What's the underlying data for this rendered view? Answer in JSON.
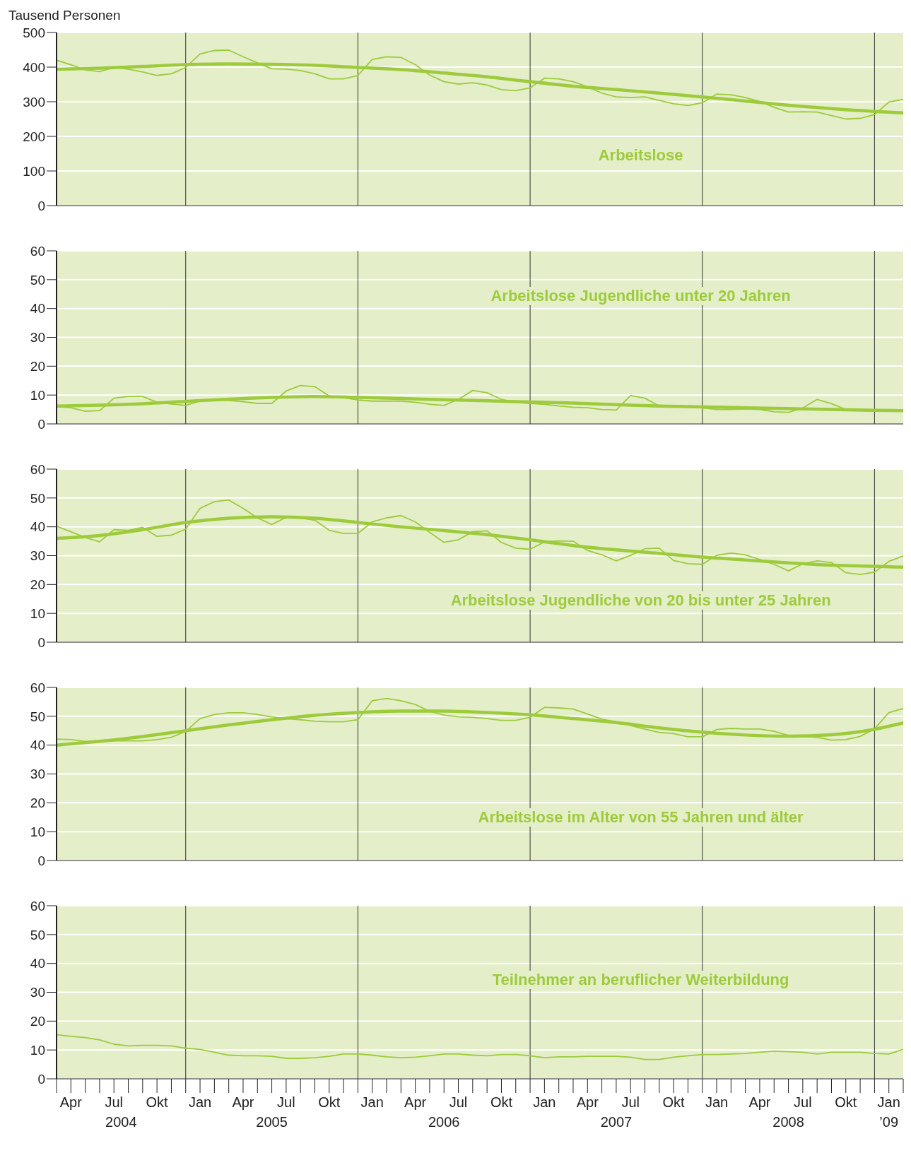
{
  "chart_data": [
    {
      "type": "line",
      "title": "Arbeitslose",
      "ylabel": "Tausend Personen",
      "x": [
        "2004-03",
        "2004-04",
        "2004-05",
        "2004-06",
        "2004-07",
        "2004-08",
        "2004-09",
        "2004-10",
        "2004-11",
        "2004-12",
        "2005-01",
        "2005-02",
        "2005-03",
        "2005-04",
        "2005-05",
        "2005-06",
        "2005-07",
        "2005-08",
        "2005-09",
        "2005-10",
        "2005-11",
        "2005-12",
        "2006-01",
        "2006-02",
        "2006-03",
        "2006-04",
        "2006-05",
        "2006-06",
        "2006-07",
        "2006-08",
        "2006-09",
        "2006-10",
        "2006-11",
        "2006-12",
        "2007-01",
        "2007-02",
        "2007-03",
        "2007-04",
        "2007-05",
        "2007-06",
        "2007-07",
        "2007-08",
        "2007-09",
        "2007-10",
        "2007-11",
        "2007-12",
        "2008-01",
        "2008-02",
        "2008-03",
        "2008-04",
        "2008-05",
        "2008-06",
        "2008-07",
        "2008-08",
        "2008-09",
        "2008-10",
        "2008-11",
        "2008-12",
        "2009-01",
        "2009-02"
      ],
      "series": [
        {
          "color": "#9dcb3c",
          "values": [
            420,
            407,
            392,
            387,
            399,
            394,
            386,
            376,
            381,
            399,
            438,
            448,
            449,
            430,
            412,
            395,
            394,
            390,
            381,
            366,
            366,
            376,
            422,
            430,
            428,
            407,
            377,
            358,
            351,
            355,
            348,
            335,
            332,
            340,
            368,
            366,
            358,
            343,
            325,
            314,
            312,
            314,
            304,
            294,
            289,
            297,
            322,
            320,
            312,
            301,
            284,
            270,
            271,
            270,
            260,
            250,
            252,
            263,
            299,
            307
          ]
        },
        {
          "color": "#9dcb3c",
          "x": [
            "2004-03",
            "2004-06",
            "2004-09",
            "2004-12",
            "2005-03",
            "2005-06",
            "2005-09",
            "2005-12",
            "2006-03",
            "2006-06",
            "2006-09",
            "2006-12",
            "2007-03",
            "2007-06",
            "2007-09",
            "2007-12",
            "2008-03",
            "2008-06",
            "2008-09",
            "2008-12",
            "2009-02"
          ],
          "values": [
            394,
            397,
            402,
            407,
            409,
            408,
            405,
            399,
            393,
            383,
            372,
            358,
            345,
            335,
            325,
            314,
            302,
            290,
            280,
            272,
            268
          ]
        }
      ],
      "xlim": [
        "2004-03",
        "2009-02"
      ],
      "ylim": [
        0,
        500
      ],
      "yticks": [
        0,
        100,
        200,
        300,
        400,
        500
      ],
      "grid": "y",
      "marker": "none",
      "tick_labels": "y",
      "ref_lines": [
        {
          "axis": "x",
          "value": "2004-12"
        },
        {
          "axis": "x",
          "value": "2005-12"
        },
        {
          "axis": "x",
          "value": "2006-12"
        },
        {
          "axis": "x",
          "value": "2007-12"
        },
        {
          "axis": "x",
          "value": "2008-12"
        }
      ]
    },
    {
      "type": "line",
      "title": "Arbeitslose Jugendliche unter 20 Jahren",
      "x": [
        "2004-03",
        "2004-04",
        "2004-05",
        "2004-06",
        "2004-07",
        "2004-08",
        "2004-09",
        "2004-10",
        "2004-11",
        "2004-12",
        "2005-01",
        "2005-02",
        "2005-03",
        "2005-04",
        "2005-05",
        "2005-06",
        "2005-07",
        "2005-08",
        "2005-09",
        "2005-10",
        "2005-11",
        "2005-12",
        "2006-01",
        "2006-02",
        "2006-03",
        "2006-04",
        "2006-05",
        "2006-06",
        "2006-07",
        "2006-08",
        "2006-09",
        "2006-10",
        "2006-11",
        "2006-12",
        "2007-01",
        "2007-02",
        "2007-03",
        "2007-04",
        "2007-05",
        "2007-06",
        "2007-07",
        "2007-08",
        "2007-09",
        "2007-10",
        "2007-11",
        "2007-12",
        "2008-01",
        "2008-02",
        "2008-03",
        "2008-04",
        "2008-05",
        "2008-06",
        "2008-07",
        "2008-08",
        "2008-09",
        "2008-10",
        "2008-11",
        "2008-12",
        "2009-01",
        "2009-02"
      ],
      "series": [
        {
          "color": "#9dcb3c",
          "values": [
            6.0,
            5.6,
            4.4,
            4.6,
            8.9,
            9.5,
            9.5,
            7.5,
            6.9,
            6.4,
            7.9,
            8.3,
            8.1,
            7.7,
            7.1,
            7.1,
            11.4,
            13.3,
            12.9,
            9.7,
            9.1,
            8.3,
            7.9,
            7.9,
            7.9,
            7.5,
            6.8,
            6.4,
            8.5,
            11.6,
            10.8,
            8.5,
            7.5,
            7.1,
            6.8,
            6.2,
            5.8,
            5.6,
            5.0,
            4.8,
            9.8,
            8.9,
            6.2,
            6.0,
            5.8,
            5.6,
            5.0,
            5.0,
            5.2,
            5.0,
            4.2,
            4.0,
            5.5,
            8.5,
            7.0,
            5.0,
            4.6,
            4.4,
            4.4,
            4.6
          ]
        },
        {
          "color": "#9dcb3c",
          "x": [
            "2004-03",
            "2004-06",
            "2004-09",
            "2004-12",
            "2005-03",
            "2005-06",
            "2005-09",
            "2005-12",
            "2006-03",
            "2006-06",
            "2006-09",
            "2006-12",
            "2007-03",
            "2007-06",
            "2007-09",
            "2007-12",
            "2008-03",
            "2008-06",
            "2008-09",
            "2008-12",
            "2009-02"
          ],
          "values": [
            6.2,
            6.5,
            7.0,
            7.8,
            8.6,
            9.2,
            9.5,
            9.2,
            8.8,
            8.4,
            8.0,
            7.6,
            7.2,
            6.7,
            6.2,
            5.9,
            5.6,
            5.3,
            5.0,
            4.7,
            4.6
          ]
        }
      ],
      "xlim": [
        "2004-03",
        "2009-02"
      ],
      "ylim": [
        0,
        60
      ],
      "yticks": [
        0,
        10,
        20,
        30,
        40,
        50,
        60
      ],
      "grid": "y",
      "marker": "none",
      "tick_labels": "y",
      "ref_lines": [
        {
          "axis": "x",
          "value": "2004-12"
        },
        {
          "axis": "x",
          "value": "2005-12"
        },
        {
          "axis": "x",
          "value": "2006-12"
        },
        {
          "axis": "x",
          "value": "2007-12"
        },
        {
          "axis": "x",
          "value": "2008-12"
        }
      ]
    },
    {
      "type": "line",
      "title": "Arbeitslose Jugendliche von 20 bis unter 25 Jahren",
      "x": [
        "2004-03",
        "2004-04",
        "2004-05",
        "2004-06",
        "2004-07",
        "2004-08",
        "2004-09",
        "2004-10",
        "2004-11",
        "2004-12",
        "2005-01",
        "2005-02",
        "2005-03",
        "2005-04",
        "2005-05",
        "2005-06",
        "2005-07",
        "2005-08",
        "2005-09",
        "2005-10",
        "2005-11",
        "2005-12",
        "2006-01",
        "2006-02",
        "2006-03",
        "2006-04",
        "2006-05",
        "2006-06",
        "2006-07",
        "2006-08",
        "2006-09",
        "2006-10",
        "2006-11",
        "2006-12",
        "2007-01",
        "2007-02",
        "2007-03",
        "2007-04",
        "2007-05",
        "2007-06",
        "2007-07",
        "2007-08",
        "2007-09",
        "2007-10",
        "2007-11",
        "2007-12",
        "2008-01",
        "2008-02",
        "2008-03",
        "2008-04",
        "2008-05",
        "2008-06",
        "2008-07",
        "2008-08",
        "2008-09",
        "2008-10",
        "2008-11",
        "2008-12",
        "2009-01",
        "2009-02"
      ],
      "series": [
        {
          "color": "#9dcb3c",
          "values": [
            40.2,
            38.3,
            36.3,
            34.8,
            39.0,
            38.8,
            39.8,
            36.7,
            37.1,
            39.2,
            46.4,
            48.7,
            49.3,
            46.4,
            43.1,
            40.8,
            43.3,
            43.1,
            42.3,
            38.8,
            37.7,
            37.7,
            41.7,
            43.1,
            43.9,
            41.7,
            38.1,
            34.6,
            35.5,
            38.3,
            38.6,
            34.6,
            32.6,
            32.2,
            34.8,
            35.1,
            35.0,
            31.8,
            30.3,
            28.2,
            30.1,
            32.4,
            32.6,
            28.3,
            27.2,
            27.0,
            30.1,
            30.9,
            30.3,
            28.7,
            27.0,
            24.7,
            27.2,
            28.2,
            27.6,
            24.1,
            23.5,
            24.3,
            28.0,
            29.9
          ]
        },
        {
          "color": "#9dcb3c",
          "x": [
            "2004-03",
            "2004-06",
            "2004-09",
            "2004-12",
            "2005-03",
            "2005-06",
            "2005-09",
            "2005-12",
            "2006-03",
            "2006-06",
            "2006-09",
            "2006-12",
            "2007-03",
            "2007-06",
            "2007-09",
            "2007-12",
            "2008-03",
            "2008-06",
            "2008-09",
            "2008-12",
            "2009-02"
          ],
          "values": [
            36.0,
            37.0,
            39.0,
            41.5,
            43.0,
            43.5,
            43.0,
            41.5,
            40.0,
            38.7,
            37.3,
            35.5,
            33.5,
            32.0,
            30.8,
            29.5,
            28.5,
            27.5,
            26.7,
            26.3,
            26.0
          ]
        }
      ],
      "xlim": [
        "2004-03",
        "2009-02"
      ],
      "ylim": [
        0,
        60
      ],
      "yticks": [
        0,
        10,
        20,
        30,
        40,
        50,
        60
      ],
      "grid": "y",
      "marker": "none",
      "tick_labels": "y",
      "ref_lines": [
        {
          "axis": "x",
          "value": "2004-12"
        },
        {
          "axis": "x",
          "value": "2005-12"
        },
        {
          "axis": "x",
          "value": "2006-12"
        },
        {
          "axis": "x",
          "value": "2007-12"
        },
        {
          "axis": "x",
          "value": "2008-12"
        }
      ]
    },
    {
      "type": "line",
      "title": "Arbeitslose im Alter von 55 Jahren und älter",
      "x": [
        "2004-03",
        "2004-04",
        "2004-05",
        "2004-06",
        "2004-07",
        "2004-08",
        "2004-09",
        "2004-10",
        "2004-11",
        "2004-12",
        "2005-01",
        "2005-02",
        "2005-03",
        "2005-04",
        "2005-05",
        "2005-06",
        "2005-07",
        "2005-08",
        "2005-09",
        "2005-10",
        "2005-11",
        "2005-12",
        "2006-01",
        "2006-02",
        "2006-03",
        "2006-04",
        "2006-05",
        "2006-06",
        "2006-07",
        "2006-08",
        "2006-09",
        "2006-10",
        "2006-11",
        "2006-12",
        "2007-01",
        "2007-02",
        "2007-03",
        "2007-04",
        "2007-05",
        "2007-06",
        "2007-07",
        "2007-08",
        "2007-09",
        "2007-10",
        "2007-11",
        "2007-12",
        "2008-01",
        "2008-02",
        "2008-03",
        "2008-04",
        "2008-05",
        "2008-06",
        "2008-07",
        "2008-08",
        "2008-09",
        "2008-10",
        "2008-11",
        "2008-12",
        "2009-01",
        "2009-02"
      ],
      "series": [
        {
          "color": "#9dcb3c",
          "values": [
            42.1,
            41.9,
            41.3,
            41.3,
            41.5,
            41.5,
            41.5,
            41.9,
            42.7,
            44.8,
            49.2,
            50.6,
            51.2,
            51.2,
            50.6,
            49.8,
            49.2,
            48.8,
            48.3,
            48.1,
            48.1,
            48.8,
            55.4,
            56.2,
            55.4,
            54.1,
            51.7,
            50.4,
            49.8,
            49.6,
            49.2,
            48.6,
            48.6,
            49.6,
            53.1,
            52.9,
            52.5,
            50.8,
            49.0,
            48.0,
            46.8,
            45.5,
            44.4,
            44.0,
            42.9,
            42.9,
            45.4,
            45.8,
            45.6,
            45.6,
            44.8,
            43.4,
            43.1,
            42.7,
            41.7,
            41.9,
            43.0,
            45.6,
            51.3,
            52.7
          ]
        },
        {
          "color": "#9dcb3c",
          "x": [
            "2004-03",
            "2004-06",
            "2004-09",
            "2004-12",
            "2005-03",
            "2005-06",
            "2005-09",
            "2005-12",
            "2006-03",
            "2006-06",
            "2006-09",
            "2006-12",
            "2007-03",
            "2007-06",
            "2007-09",
            "2007-12",
            "2008-03",
            "2008-06",
            "2008-09",
            "2008-12",
            "2009-02"
          ],
          "values": [
            40.0,
            41.3,
            43.0,
            45.0,
            47.0,
            48.8,
            50.3,
            51.3,
            51.8,
            51.8,
            51.3,
            50.5,
            49.2,
            47.8,
            46.0,
            44.5,
            43.5,
            43.1,
            43.6,
            45.5,
            47.7
          ]
        }
      ],
      "xlim": [
        "2004-03",
        "2009-02"
      ],
      "ylim": [
        0,
        60
      ],
      "yticks": [
        0,
        10,
        20,
        30,
        40,
        50,
        60
      ],
      "grid": "y",
      "marker": "none",
      "tick_labels": "y",
      "ref_lines": [
        {
          "axis": "x",
          "value": "2004-12"
        },
        {
          "axis": "x",
          "value": "2005-12"
        },
        {
          "axis": "x",
          "value": "2006-12"
        },
        {
          "axis": "x",
          "value": "2007-12"
        },
        {
          "axis": "x",
          "value": "2008-12"
        }
      ]
    },
    {
      "type": "line",
      "title": "Teilnehmer an beruflicher Weiterbildung",
      "x": [
        "2004-03",
        "2004-04",
        "2004-05",
        "2004-06",
        "2004-07",
        "2004-08",
        "2004-09",
        "2004-10",
        "2004-11",
        "2004-12",
        "2005-01",
        "2005-02",
        "2005-03",
        "2005-04",
        "2005-05",
        "2005-06",
        "2005-07",
        "2005-08",
        "2005-09",
        "2005-10",
        "2005-11",
        "2005-12",
        "2006-01",
        "2006-02",
        "2006-03",
        "2006-04",
        "2006-05",
        "2006-06",
        "2006-07",
        "2006-08",
        "2006-09",
        "2006-10",
        "2006-11",
        "2006-12",
        "2007-01",
        "2007-02",
        "2007-03",
        "2007-04",
        "2007-05",
        "2007-06",
        "2007-07",
        "2007-08",
        "2007-09",
        "2007-10",
        "2007-11",
        "2007-12",
        "2008-01",
        "2008-02",
        "2008-03",
        "2008-04",
        "2008-05",
        "2008-06",
        "2008-07",
        "2008-08",
        "2008-09",
        "2008-10",
        "2008-11",
        "2008-12",
        "2009-01",
        "2009-02"
      ],
      "series": [
        {
          "color": "#9dcb3c",
          "values": [
            15.3,
            14.7,
            14.3,
            13.5,
            12.0,
            11.4,
            11.6,
            11.6,
            11.4,
            10.6,
            10.2,
            9.2,
            8.2,
            8.0,
            8.0,
            7.8,
            7.1,
            7.1,
            7.3,
            7.8,
            8.6,
            8.6,
            8.2,
            7.6,
            7.3,
            7.5,
            8.0,
            8.6,
            8.6,
            8.2,
            8.0,
            8.4,
            8.4,
            8.0,
            7.3,
            7.6,
            7.6,
            7.8,
            7.8,
            7.8,
            7.5,
            6.7,
            6.7,
            7.5,
            8.0,
            8.4,
            8.4,
            8.6,
            8.8,
            9.2,
            9.6,
            9.4,
            9.2,
            8.6,
            9.2,
            9.2,
            9.2,
            8.8,
            8.6,
            10.2
          ]
        }
      ],
      "xlim": [
        "2004-03",
        "2009-02"
      ],
      "ylim": [
        0,
        60
      ],
      "yticks": [
        0,
        10,
        20,
        30,
        40,
        50,
        60
      ],
      "grid": "y",
      "marker": "none",
      "xticks": [
        {
          "value": "2004-04",
          "label": "Apr"
        },
        {
          "value": "2004-07",
          "label": "Jul"
        },
        {
          "value": "2004-10",
          "label": "Okt"
        },
        {
          "value": "2005-01",
          "label": "Jan"
        },
        {
          "value": "2005-04",
          "label": "Apr"
        },
        {
          "value": "2005-07",
          "label": "Jul"
        },
        {
          "value": "2005-10",
          "label": "Okt"
        },
        {
          "value": "2006-01",
          "label": "Jan"
        },
        {
          "value": "2006-04",
          "label": "Apr"
        },
        {
          "value": "2006-07",
          "label": "Jul"
        },
        {
          "value": "2006-10",
          "label": "Okt"
        },
        {
          "value": "2007-01",
          "label": "Jan"
        },
        {
          "value": "2007-04",
          "label": "Apr"
        },
        {
          "value": "2007-07",
          "label": "Jul"
        },
        {
          "value": "2007-10",
          "label": "Okt"
        },
        {
          "value": "2008-01",
          "label": "Jan"
        },
        {
          "value": "2008-04",
          "label": "Apr"
        },
        {
          "value": "2008-07",
          "label": "Jul"
        },
        {
          "value": "2008-10",
          "label": "Okt"
        },
        {
          "value": "2009-01",
          "label": "Jan"
        }
      ],
      "annotations": [
        "2004",
        "2005",
        "2006",
        "2007",
        "2008",
        "’09"
      ],
      "ref_lines": [
        {
          "axis": "x",
          "value": "2004-12"
        },
        {
          "axis": "x",
          "value": "2005-12"
        },
        {
          "axis": "x",
          "value": "2006-12"
        },
        {
          "axis": "x",
          "value": "2007-12"
        },
        {
          "axis": "x",
          "value": "2008-12"
        }
      ]
    }
  ]
}
